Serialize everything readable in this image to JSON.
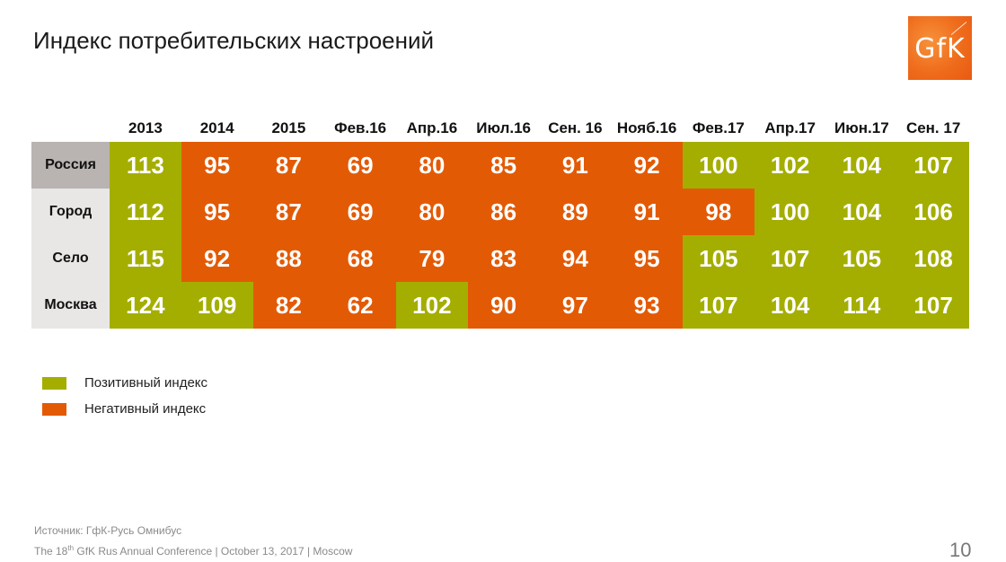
{
  "title": "Индекс потребительских настроений",
  "logo": {
    "text": "GfK",
    "color": "#ef6c1c"
  },
  "colors": {
    "positive": "#a4ae00",
    "negative": "#e35a05",
    "label_first_bg": "#b9b3b1",
    "label_bg": "#e9e7e6"
  },
  "table": {
    "columns": [
      "2013",
      "2014",
      "2015",
      "Фев.16",
      "Апр.16",
      "Июл.16",
      "Сен. 16",
      "Нояб.16",
      "Фев.17",
      "Апр.17",
      "Июн.17",
      "Сен. 17"
    ],
    "rows": [
      {
        "label": "Россия",
        "values": [
          {
            "v": "113",
            "s": "pos"
          },
          {
            "v": "95",
            "s": "neg"
          },
          {
            "v": "87",
            "s": "neg"
          },
          {
            "v": "69",
            "s": "neg"
          },
          {
            "v": "80",
            "s": "neg"
          },
          {
            "v": "85",
            "s": "neg"
          },
          {
            "v": "91",
            "s": "neg"
          },
          {
            "v": "92",
            "s": "neg"
          },
          {
            "v": "100",
            "s": "pos"
          },
          {
            "v": "102",
            "s": "pos"
          },
          {
            "v": "104",
            "s": "pos"
          },
          {
            "v": "107",
            "s": "pos"
          }
        ]
      },
      {
        "label": "Город",
        "values": [
          {
            "v": "112",
            "s": "pos"
          },
          {
            "v": "95",
            "s": "neg"
          },
          {
            "v": "87",
            "s": "neg"
          },
          {
            "v": "69",
            "s": "neg"
          },
          {
            "v": "80",
            "s": "neg"
          },
          {
            "v": "86",
            "s": "neg"
          },
          {
            "v": "89",
            "s": "neg"
          },
          {
            "v": "91",
            "s": "neg"
          },
          {
            "v": "98",
            "s": "neg"
          },
          {
            "v": "100",
            "s": "pos"
          },
          {
            "v": "104",
            "s": "pos"
          },
          {
            "v": "106",
            "s": "pos"
          }
        ]
      },
      {
        "label": "Село",
        "values": [
          {
            "v": "115",
            "s": "pos"
          },
          {
            "v": "92",
            "s": "neg"
          },
          {
            "v": "88",
            "s": "neg"
          },
          {
            "v": "68",
            "s": "neg"
          },
          {
            "v": "79",
            "s": "neg"
          },
          {
            "v": "83",
            "s": "neg"
          },
          {
            "v": "94",
            "s": "neg"
          },
          {
            "v": "95",
            "s": "neg"
          },
          {
            "v": "105",
            "s": "pos"
          },
          {
            "v": "107",
            "s": "pos"
          },
          {
            "v": "105",
            "s": "pos"
          },
          {
            "v": "108",
            "s": "pos"
          }
        ]
      },
      {
        "label": "Москва",
        "values": [
          {
            "v": "124",
            "s": "pos"
          },
          {
            "v": "109",
            "s": "pos"
          },
          {
            "v": "82",
            "s": "neg"
          },
          {
            "v": "62",
            "s": "neg"
          },
          {
            "v": "102",
            "s": "pos"
          },
          {
            "v": "90",
            "s": "neg"
          },
          {
            "v": "97",
            "s": "neg"
          },
          {
            "v": "93",
            "s": "neg"
          },
          {
            "v": "107",
            "s": "pos"
          },
          {
            "v": "104",
            "s": "pos"
          },
          {
            "v": "114",
            "s": "pos"
          },
          {
            "v": "107",
            "s": "pos"
          }
        ]
      }
    ]
  },
  "legend": [
    {
      "label": "Позитивный индекс",
      "color": "#a4ae00"
    },
    {
      "label": "Негативный индекс",
      "color": "#e35a05"
    }
  ],
  "footer": {
    "source": "Источник:  ГфК-Русь  Омнибус",
    "conf_pre": "The 18",
    "conf_sup": "th",
    "conf_post": " GfK Rus  Annual  Conference  | October  13, 2017 | Moscow",
    "page": "10"
  },
  "chart_data": {
    "type": "table",
    "title": "Индекс потребительских настроений",
    "categories": [
      "2013",
      "2014",
      "2015",
      "Фев.16",
      "Апр.16",
      "Июл.16",
      "Сен. 16",
      "Нояб.16",
      "Фев.17",
      "Апр.17",
      "Июн.17",
      "Сен. 17"
    ],
    "series": [
      {
        "name": "Россия",
        "values": [
          113,
          95,
          87,
          69,
          80,
          85,
          91,
          92,
          100,
          102,
          104,
          107
        ]
      },
      {
        "name": "Город",
        "values": [
          112,
          95,
          87,
          69,
          80,
          86,
          89,
          91,
          98,
          100,
          104,
          106
        ]
      },
      {
        "name": "Село",
        "values": [
          115,
          92,
          88,
          68,
          79,
          83,
          94,
          95,
          105,
          107,
          105,
          108
        ]
      },
      {
        "name": "Москва",
        "values": [
          124,
          109,
          82,
          62,
          102,
          90,
          97,
          93,
          107,
          104,
          114,
          107
        ]
      }
    ],
    "legend": [
      "Позитивный индекс",
      "Негативный индекс"
    ],
    "threshold_note": "values >= 100 positive (green), < 100 negative (orange)"
  }
}
